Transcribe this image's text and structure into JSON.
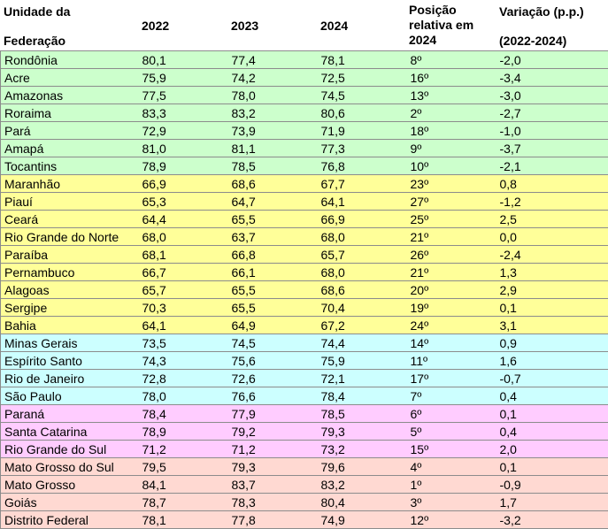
{
  "header": {
    "uf_line1": "Unidade da",
    "uf_line2": "Federação",
    "y2022": "2022",
    "y2023": "2023",
    "y2024": "2024",
    "pos_line1": "Posição",
    "pos_line2": "relativa em",
    "pos_line3": "2024",
    "var_line1": "Variação (p.p.)",
    "var_line2": "(2022-2024)"
  },
  "region_colors": {
    "green": "#ccffcc",
    "yellow": "#ffff99",
    "cyan": "#ccffff",
    "pink": "#ffccff",
    "salmon": "#ffd9d2"
  },
  "rows": [
    {
      "uf": "Rondônia",
      "v2022": "80,1",
      "v2023": "77,4",
      "v2024": "78,1",
      "pos": "8º",
      "var": "-2,0",
      "region": "green"
    },
    {
      "uf": "Acre",
      "v2022": "75,9",
      "v2023": "74,2",
      "v2024": "72,5",
      "pos": "16º",
      "var": "-3,4",
      "region": "green"
    },
    {
      "uf": "Amazonas",
      "v2022": "77,5",
      "v2023": "78,0",
      "v2024": "74,5",
      "pos": "13º",
      "var": "-3,0",
      "region": "green"
    },
    {
      "uf": "Roraima",
      "v2022": "83,3",
      "v2023": "83,2",
      "v2024": "80,6",
      "pos": "2º",
      "var": "-2,7",
      "region": "green"
    },
    {
      "uf": "Pará",
      "v2022": "72,9",
      "v2023": "73,9",
      "v2024": "71,9",
      "pos": "18º",
      "var": "-1,0",
      "region": "green"
    },
    {
      "uf": "Amapá",
      "v2022": "81,0",
      "v2023": "81,1",
      "v2024": "77,3",
      "pos": "9º",
      "var": "-3,7",
      "region": "green"
    },
    {
      "uf": "Tocantins",
      "v2022": "78,9",
      "v2023": "78,5",
      "v2024": "76,8",
      "pos": "10º",
      "var": "-2,1",
      "region": "green"
    },
    {
      "uf": "Maranhão",
      "v2022": "66,9",
      "v2023": "68,6",
      "v2024": "67,7",
      "pos": "23º",
      "var": "0,8",
      "region": "yellow"
    },
    {
      "uf": "Piauí",
      "v2022": "65,3",
      "v2023": "64,7",
      "v2024": "64,1",
      "pos": "27º",
      "var": "-1,2",
      "region": "yellow"
    },
    {
      "uf": "Ceará",
      "v2022": "64,4",
      "v2023": "65,5",
      "v2024": "66,9",
      "pos": "25º",
      "var": "2,5",
      "region": "yellow"
    },
    {
      "uf": "Rio Grande do Norte",
      "v2022": "68,0",
      "v2023": "63,7",
      "v2024": "68,0",
      "pos": "21º",
      "var": "0,0",
      "region": "yellow"
    },
    {
      "uf": "Paraíba",
      "v2022": "68,1",
      "v2023": "66,8",
      "v2024": "65,7",
      "pos": "26º",
      "var": "-2,4",
      "region": "yellow"
    },
    {
      "uf": "Pernambuco",
      "v2022": "66,7",
      "v2023": "66,1",
      "v2024": "68,0",
      "pos": "21º",
      "var": "1,3",
      "region": "yellow"
    },
    {
      "uf": "Alagoas",
      "v2022": "65,7",
      "v2023": "65,5",
      "v2024": "68,6",
      "pos": "20º",
      "var": "2,9",
      "region": "yellow"
    },
    {
      "uf": "Sergipe",
      "v2022": "70,3",
      "v2023": "65,5",
      "v2024": "70,4",
      "pos": "19º",
      "var": "0,1",
      "region": "yellow"
    },
    {
      "uf": "Bahia",
      "v2022": "64,1",
      "v2023": "64,9",
      "v2024": "67,2",
      "pos": "24º",
      "var": "3,1",
      "region": "yellow"
    },
    {
      "uf": "Minas Gerais",
      "v2022": "73,5",
      "v2023": "74,5",
      "v2024": "74,4",
      "pos": "14º",
      "var": "0,9",
      "region": "cyan"
    },
    {
      "uf": "Espírito Santo",
      "v2022": "74,3",
      "v2023": "75,6",
      "v2024": "75,9",
      "pos": "11º",
      "var": "1,6",
      "region": "cyan"
    },
    {
      "uf": "Rio de Janeiro",
      "v2022": "72,8",
      "v2023": "72,6",
      "v2024": "72,1",
      "pos": "17º",
      "var": "-0,7",
      "region": "cyan"
    },
    {
      "uf": "São Paulo",
      "v2022": "78,0",
      "v2023": "76,6",
      "v2024": "78,4",
      "pos": "7º",
      "var": "0,4",
      "region": "cyan"
    },
    {
      "uf": "Paraná",
      "v2022": "78,4",
      "v2023": "77,9",
      "v2024": "78,5",
      "pos": "6º",
      "var": "0,1",
      "region": "pink"
    },
    {
      "uf": "Santa Catarina",
      "v2022": "78,9",
      "v2023": "79,2",
      "v2024": "79,3",
      "pos": "5º",
      "var": "0,4",
      "region": "pink"
    },
    {
      "uf": "Rio Grande do Sul",
      "v2022": "71,2",
      "v2023": "71,2",
      "v2024": "73,2",
      "pos": "15º",
      "var": "2,0",
      "region": "pink"
    },
    {
      "uf": "Mato Grosso do Sul",
      "v2022": "79,5",
      "v2023": "79,3",
      "v2024": "79,6",
      "pos": "4º",
      "var": "0,1",
      "region": "salmon"
    },
    {
      "uf": "Mato Grosso",
      "v2022": "84,1",
      "v2023": "83,7",
      "v2024": "83,2",
      "pos": "1º",
      "var": "-0,9",
      "region": "salmon"
    },
    {
      "uf": "Goiás",
      "v2022": "78,7",
      "v2023": "78,3",
      "v2024": "80,4",
      "pos": "3º",
      "var": "1,7",
      "region": "salmon"
    },
    {
      "uf": "Distrito Federal",
      "v2022": "78,1",
      "v2023": "77,8",
      "v2024": "74,9",
      "pos": "12º",
      "var": "-3,2",
      "region": "salmon"
    }
  ]
}
